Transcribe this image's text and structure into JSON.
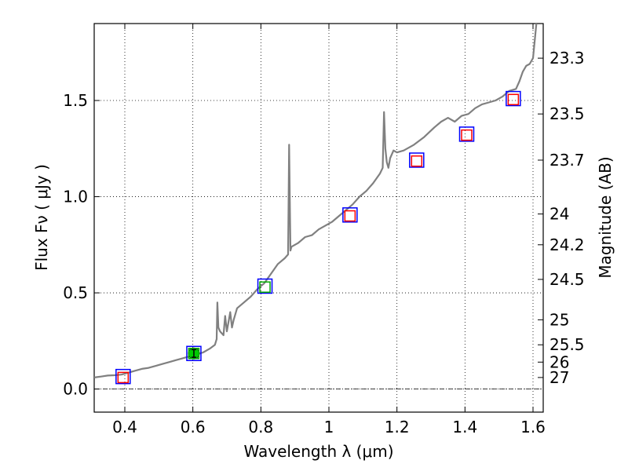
{
  "chart_data": {
    "type": "line",
    "title": "",
    "xlabel": "Wavelength  λ (μm)",
    "ylabel_left": "Flux  Fν  ( μJy )",
    "ylabel_right": "Magnitude (AB)",
    "xlim": [
      0.31,
      1.63
    ],
    "ylim": [
      -0.12,
      1.9
    ],
    "grid": true,
    "x_ticks": [
      0.4,
      0.6,
      0.8,
      1.0,
      1.2,
      1.4,
      1.6
    ],
    "x_tick_labels": [
      "0.4",
      "0.6",
      "0.8",
      "1",
      "1.2",
      "1.4",
      "1.6"
    ],
    "y_ticks": [
      0.0,
      0.5,
      1.0,
      1.5
    ],
    "y_tick_labels": [
      "0.0",
      "0.5",
      "1.0",
      "1.5"
    ],
    "right_ticks": [
      {
        "label": "23.3",
        "flux": 1.72
      },
      {
        "label": "23.5",
        "flux": 1.43
      },
      {
        "label": "23.7",
        "flux": 1.19
      },
      {
        "label": "24",
        "flux": 0.91
      },
      {
        "label": "24.2",
        "flux": 0.75
      },
      {
        "label": "24.5",
        "flux": 0.57
      },
      {
        "label": "25",
        "flux": 0.36
      },
      {
        "label": "25.5",
        "flux": 0.23
      },
      {
        "label": "26",
        "flux": 0.14
      },
      {
        "label": "27",
        "flux": 0.06
      }
    ],
    "zero_line": 0.0,
    "series": [
      {
        "name": "model spectrum",
        "color": "#808080",
        "points": [
          [
            0.31,
            0.06
          ],
          [
            0.33,
            0.065
          ],
          [
            0.35,
            0.07
          ],
          [
            0.37,
            0.072
          ],
          [
            0.39,
            0.075
          ],
          [
            0.41,
            0.085
          ],
          [
            0.43,
            0.095
          ],
          [
            0.45,
            0.105
          ],
          [
            0.47,
            0.11
          ],
          [
            0.49,
            0.12
          ],
          [
            0.51,
            0.13
          ],
          [
            0.53,
            0.14
          ],
          [
            0.55,
            0.15
          ],
          [
            0.57,
            0.16
          ],
          [
            0.59,
            0.17
          ],
          [
            0.61,
            0.18
          ],
          [
            0.63,
            0.19
          ],
          [
            0.65,
            0.21
          ],
          [
            0.665,
            0.23
          ],
          [
            0.67,
            0.26
          ],
          [
            0.672,
            0.45
          ],
          [
            0.675,
            0.32
          ],
          [
            0.68,
            0.3
          ],
          [
            0.69,
            0.28
          ],
          [
            0.695,
            0.38
          ],
          [
            0.7,
            0.3
          ],
          [
            0.71,
            0.4
          ],
          [
            0.715,
            0.32
          ],
          [
            0.72,
            0.36
          ],
          [
            0.73,
            0.42
          ],
          [
            0.75,
            0.45
          ],
          [
            0.77,
            0.48
          ],
          [
            0.79,
            0.52
          ],
          [
            0.81,
            0.55
          ],
          [
            0.83,
            0.6
          ],
          [
            0.85,
            0.65
          ],
          [
            0.87,
            0.68
          ],
          [
            0.88,
            0.7
          ],
          [
            0.883,
            1.27
          ],
          [
            0.887,
            0.72
          ],
          [
            0.89,
            0.74
          ],
          [
            0.91,
            0.76
          ],
          [
            0.93,
            0.79
          ],
          [
            0.95,
            0.8
          ],
          [
            0.97,
            0.83
          ],
          [
            0.99,
            0.85
          ],
          [
            1.01,
            0.87
          ],
          [
            1.03,
            0.9
          ],
          [
            1.05,
            0.93
          ],
          [
            1.07,
            0.96
          ],
          [
            1.09,
            1.0
          ],
          [
            1.11,
            1.03
          ],
          [
            1.13,
            1.07
          ],
          [
            1.15,
            1.12
          ],
          [
            1.158,
            1.15
          ],
          [
            1.162,
            1.44
          ],
          [
            1.166,
            1.25
          ],
          [
            1.17,
            1.18
          ],
          [
            1.175,
            1.15
          ],
          [
            1.18,
            1.2
          ],
          [
            1.19,
            1.24
          ],
          [
            1.2,
            1.23
          ],
          [
            1.22,
            1.24
          ],
          [
            1.25,
            1.27
          ],
          [
            1.28,
            1.31
          ],
          [
            1.31,
            1.36
          ],
          [
            1.33,
            1.39
          ],
          [
            1.35,
            1.41
          ],
          [
            1.37,
            1.39
          ],
          [
            1.39,
            1.42
          ],
          [
            1.41,
            1.43
          ],
          [
            1.43,
            1.46
          ],
          [
            1.45,
            1.48
          ],
          [
            1.47,
            1.49
          ],
          [
            1.49,
            1.5
          ],
          [
            1.51,
            1.52
          ],
          [
            1.53,
            1.55
          ],
          [
            1.55,
            1.56
          ],
          [
            1.56,
            1.6
          ],
          [
            1.57,
            1.65
          ],
          [
            1.58,
            1.68
          ],
          [
            1.59,
            1.69
          ],
          [
            1.6,
            1.72
          ],
          [
            1.61,
            1.9
          ]
        ]
      },
      {
        "name": "photometry (blue boxes)",
        "color": "#0000ff",
        "points": [
          [
            0.395,
            0.065
          ],
          [
            0.603,
            0.185
          ],
          [
            0.812,
            0.535
          ],
          [
            1.062,
            0.905
          ],
          [
            1.258,
            1.19
          ],
          [
            1.405,
            1.325
          ],
          [
            1.542,
            1.51
          ]
        ]
      },
      {
        "name": "model magnitudes (red boxes)",
        "color": "#ff0000",
        "points": [
          [
            0.395,
            0.06
          ],
          [
            1.062,
            0.9
          ],
          [
            1.258,
            1.185
          ],
          [
            1.405,
            1.32
          ],
          [
            1.542,
            1.505
          ]
        ]
      },
      {
        "name": "model magnitudes (green boxes)",
        "color": "#00aa00",
        "points": [
          [
            0.603,
            0.185
          ],
          [
            0.812,
            0.53
          ]
        ]
      }
    ],
    "detection": {
      "x": 0.603,
      "y": 0.185,
      "err": 0.02,
      "color": "#00cc00"
    }
  }
}
